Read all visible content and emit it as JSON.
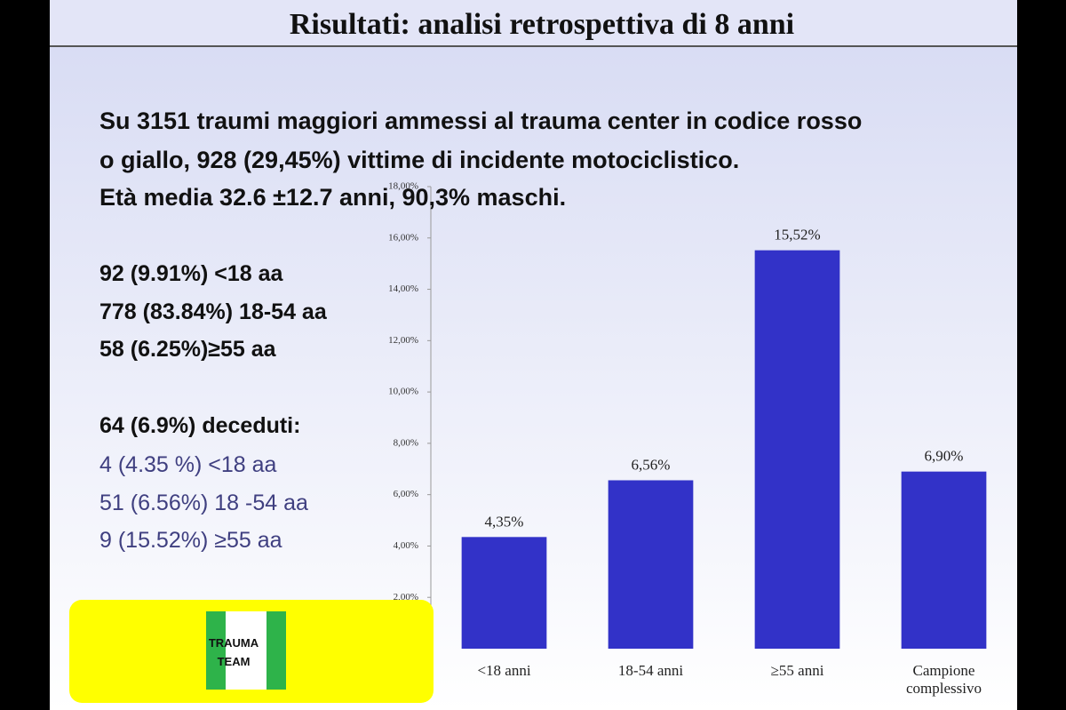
{
  "slide": {
    "title": "Risultati: analisi retrospettiva di 8 anni",
    "intro": [
      "Su 3151 traumi maggiori ammessi al trauma center in codice rosso",
      "o giallo, 928 (29,45%) vittime di incidente motociclistico.",
      "Età media 32.6 ±12.7 anni, 90,3% maschi."
    ],
    "age_groups": [
      "92 (9.91%) <18 aa",
      "778 (83.84%) 18-54 aa",
      "58 (6.25%)≥55 aa"
    ],
    "deaths_title": "64 (6.9%) deceduti:",
    "deaths": [
      "4 (4.35 %) <18 aa",
      "51 (6.56%) 18 -54 aa",
      "9 (15.52%) ≥55 aa"
    ],
    "logo": [
      "TRAUMA",
      "TEAM"
    ]
  },
  "chart_data": {
    "type": "bar",
    "categories": [
      "<18 anni",
      "18-54 anni",
      "≥55 anni",
      "Campione complessivo"
    ],
    "values": [
      4.35,
      6.56,
      15.52,
      6.9
    ],
    "value_labels": [
      "4,35%",
      "6,56%",
      "15,52%",
      "6,90%"
    ],
    "color": "#3232c8",
    "ylim": [
      0,
      18
    ],
    "yticks": [
      {
        "value": 2,
        "label": "2,00%"
      },
      {
        "value": 4,
        "label": "4,00%"
      },
      {
        "value": 6,
        "label": "6,00%"
      },
      {
        "value": 8,
        "label": "8,00%"
      },
      {
        "value": 10,
        "label": "10,00%"
      },
      {
        "value": 12,
        "label": "12,00%"
      },
      {
        "value": 14,
        "label": "14,00%"
      },
      {
        "value": 16,
        "label": "16,00%"
      },
      {
        "value": 18,
        "label": "18,00%"
      }
    ]
  }
}
